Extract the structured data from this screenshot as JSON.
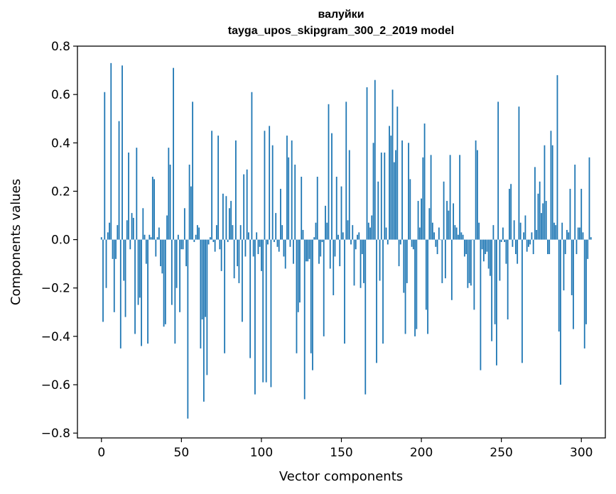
{
  "chart_data": {
    "type": "bar",
    "title": "валуйки",
    "subtitle": "tayga_upos_skipgram_300_2_2019 model",
    "xlabel": "Vector components",
    "ylabel": "Components values",
    "xlim": [
      -15,
      315
    ],
    "ylim": [
      -0.82,
      0.8
    ],
    "xticks": [
      0,
      50,
      100,
      150,
      200,
      250,
      300
    ],
    "yticks": [
      0.8,
      0.6,
      0.4,
      0.2,
      0.0,
      -0.2,
      -0.4,
      -0.6,
      -0.8
    ],
    "ytick_labels": [
      "0.8",
      "0.6",
      "0.4",
      "0.2",
      "0.0",
      "−0.2",
      "−0.4",
      "−0.6",
      "−0.8"
    ],
    "bar_color": "#1f77b4",
    "values": [
      0.01,
      -0.34,
      0.61,
      -0.2,
      0.03,
      0.07,
      0.73,
      -0.08,
      -0.3,
      -0.08,
      0.06,
      0.49,
      -0.45,
      0.72,
      -0.17,
      -0.32,
      0.08,
      0.36,
      -0.04,
      0.11,
      0.09,
      -0.39,
      0.38,
      -0.27,
      -0.24,
      -0.44,
      0.13,
      0.02,
      -0.1,
      -0.43,
      0.02,
      0.01,
      0.26,
      0.25,
      -0.07,
      0.01,
      0.05,
      -0.11,
      -0.14,
      -0.36,
      -0.35,
      0.1,
      0.38,
      0.31,
      -0.27,
      0.71,
      -0.43,
      -0.2,
      0.02,
      -0.3,
      -0.04,
      -0.04,
      0.13,
      -0.11,
      -0.74,
      0.31,
      0.22,
      0.57,
      -0.01,
      0.02,
      0.06,
      0.05,
      -0.45,
      -0.33,
      -0.67,
      -0.32,
      -0.56,
      -0.02,
      0.01,
      0.45,
      -0.01,
      -0.05,
      0.06,
      0.43,
      -0.04,
      -0.13,
      0.19,
      -0.47,
      0.18,
      -0.01,
      0.13,
      0.16,
      0.06,
      -0.16,
      0.41,
      -0.11,
      -0.18,
      0.06,
      -0.34,
      0.27,
      -0.07,
      0.29,
      0.03,
      -0.49,
      0.61,
      -0.07,
      -0.64,
      0.03,
      -0.06,
      -0.03,
      -0.13,
      -0.59,
      0.45,
      -0.59,
      -0.02,
      0.47,
      -0.61,
      0.39,
      -0.01,
      0.11,
      -0.03,
      -0.05,
      0.21,
      0.06,
      -0.07,
      -0.12,
      0.43,
      0.34,
      -0.03,
      0.41,
      -0.1,
      0.31,
      -0.47,
      -0.3,
      -0.26,
      0.26,
      0.04,
      -0.66,
      -0.09,
      -0.09,
      -0.08,
      -0.47,
      -0.54,
      0.01,
      0.07,
      0.26,
      -0.1,
      -0.07,
      -0.01,
      -0.4,
      0.14,
      0.07,
      0.56,
      -0.12,
      0.44,
      -0.23,
      -0.07,
      0.26,
      0.02,
      -0.11,
      0.22,
      0.03,
      -0.43,
      0.57,
      0.08,
      0.37,
      -0.02,
      0.06,
      -0.19,
      -0.04,
      0.02,
      0.03,
      -0.2,
      -0.06,
      -0.18,
      -0.64,
      0.63,
      0.07,
      0.05,
      0.1,
      0.4,
      0.66,
      -0.51,
      0.24,
      -0.17,
      0.36,
      -0.43,
      0.36,
      0.05,
      -0.02,
      0.47,
      0.43,
      0.62,
      0.32,
      0.37,
      0.55,
      -0.11,
      -0.02,
      0.41,
      -0.22,
      -0.39,
      -0.18,
      0.4,
      0.25,
      -0.03,
      -0.04,
      -0.4,
      -0.37,
      0.16,
      0.05,
      0.17,
      0.34,
      0.48,
      -0.29,
      -0.39,
      0.13,
      0.35,
      0.07,
      0.03,
      -0.03,
      -0.06,
      0.05,
      0.0,
      -0.18,
      0.24,
      -0.16,
      0.16,
      0.12,
      0.35,
      -0.25,
      0.15,
      0.06,
      0.05,
      0.02,
      0.35,
      0.03,
      0.02,
      -0.07,
      -0.06,
      -0.2,
      -0.18,
      -0.19,
      0.0,
      -0.29,
      0.41,
      0.37,
      0.07,
      -0.54,
      -0.04,
      -0.09,
      -0.06,
      -0.05,
      -0.12,
      -0.15,
      -0.42,
      0.06,
      -0.35,
      -0.52,
      0.57,
      -0.17,
      -0.01,
      0.05,
      -0.01,
      -0.1,
      -0.33,
      0.21,
      0.23,
      -0.03,
      0.08,
      -0.06,
      -0.1,
      0.55,
      0.07,
      -0.51,
      0.03,
      0.1,
      -0.05,
      -0.03,
      -0.02,
      0.03,
      -0.06,
      0.3,
      0.04,
      0.19,
      0.24,
      0.11,
      0.15,
      0.39,
      0.16,
      -0.06,
      -0.06,
      0.45,
      0.39,
      0.07,
      0.06,
      0.68,
      -0.38,
      -0.6,
      0.07,
      -0.21,
      -0.06,
      0.04,
      0.03,
      0.21,
      -0.23,
      -0.37,
      0.31,
      -0.06,
      0.05,
      0.05,
      0.21,
      0.03,
      -0.45,
      -0.35,
      -0.08,
      0.34,
      0.01
    ]
  }
}
